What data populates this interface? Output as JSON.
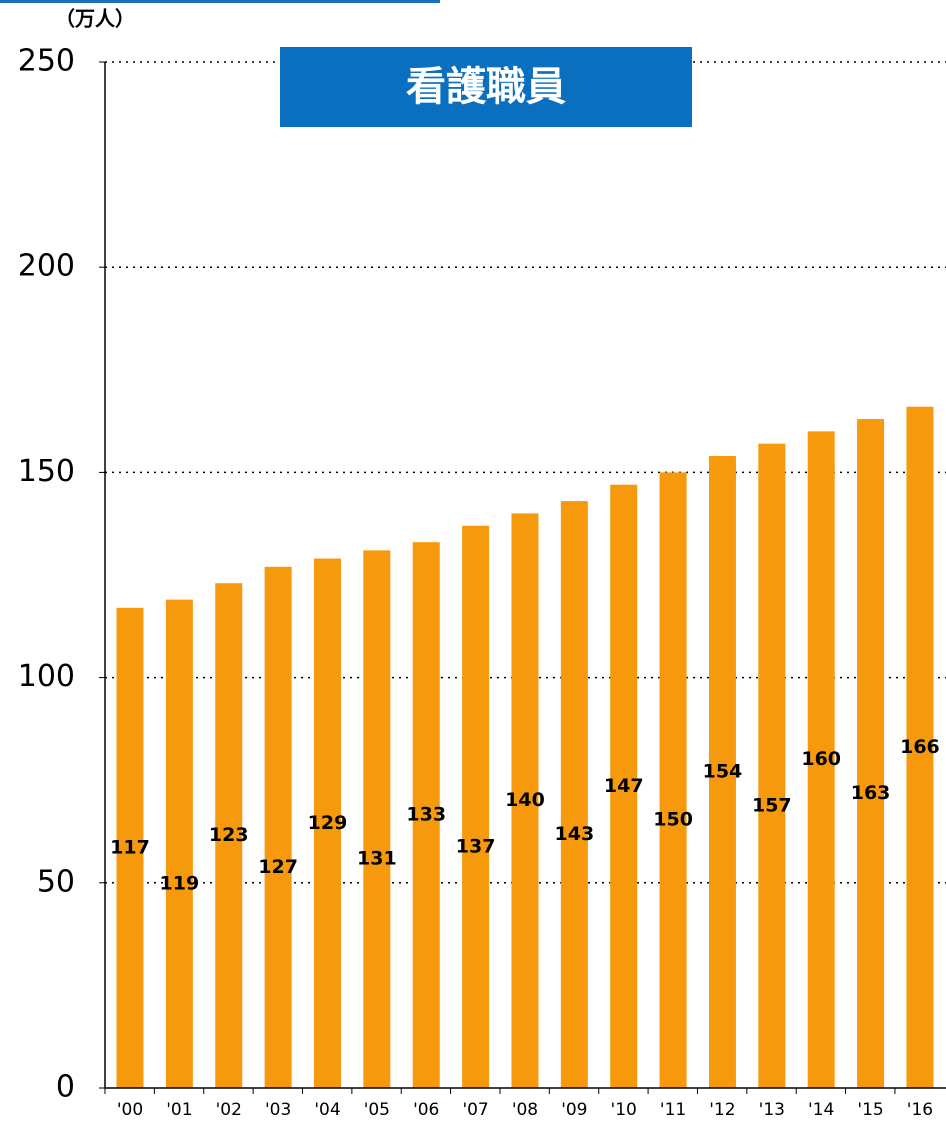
{
  "chart_data": {
    "type": "bar",
    "title": "看護職員",
    "y_label": "（万人）",
    "categories": [
      "'00",
      "'01",
      "'02",
      "'03",
      "'04",
      "'05",
      "'06",
      "'07",
      "'08",
      "'09",
      "'10",
      "'11",
      "'12",
      "'13",
      "'14",
      "'15",
      "'16"
    ],
    "values": [
      117,
      119,
      123,
      127,
      129,
      131,
      133,
      137,
      140,
      143,
      147,
      150,
      154,
      157,
      160,
      163,
      166
    ],
    "color": "#f7990c",
    "ylim": [
      0,
      250
    ],
    "yticks": [
      0,
      50,
      100,
      150,
      200,
      250
    ],
    "grid": true
  }
}
